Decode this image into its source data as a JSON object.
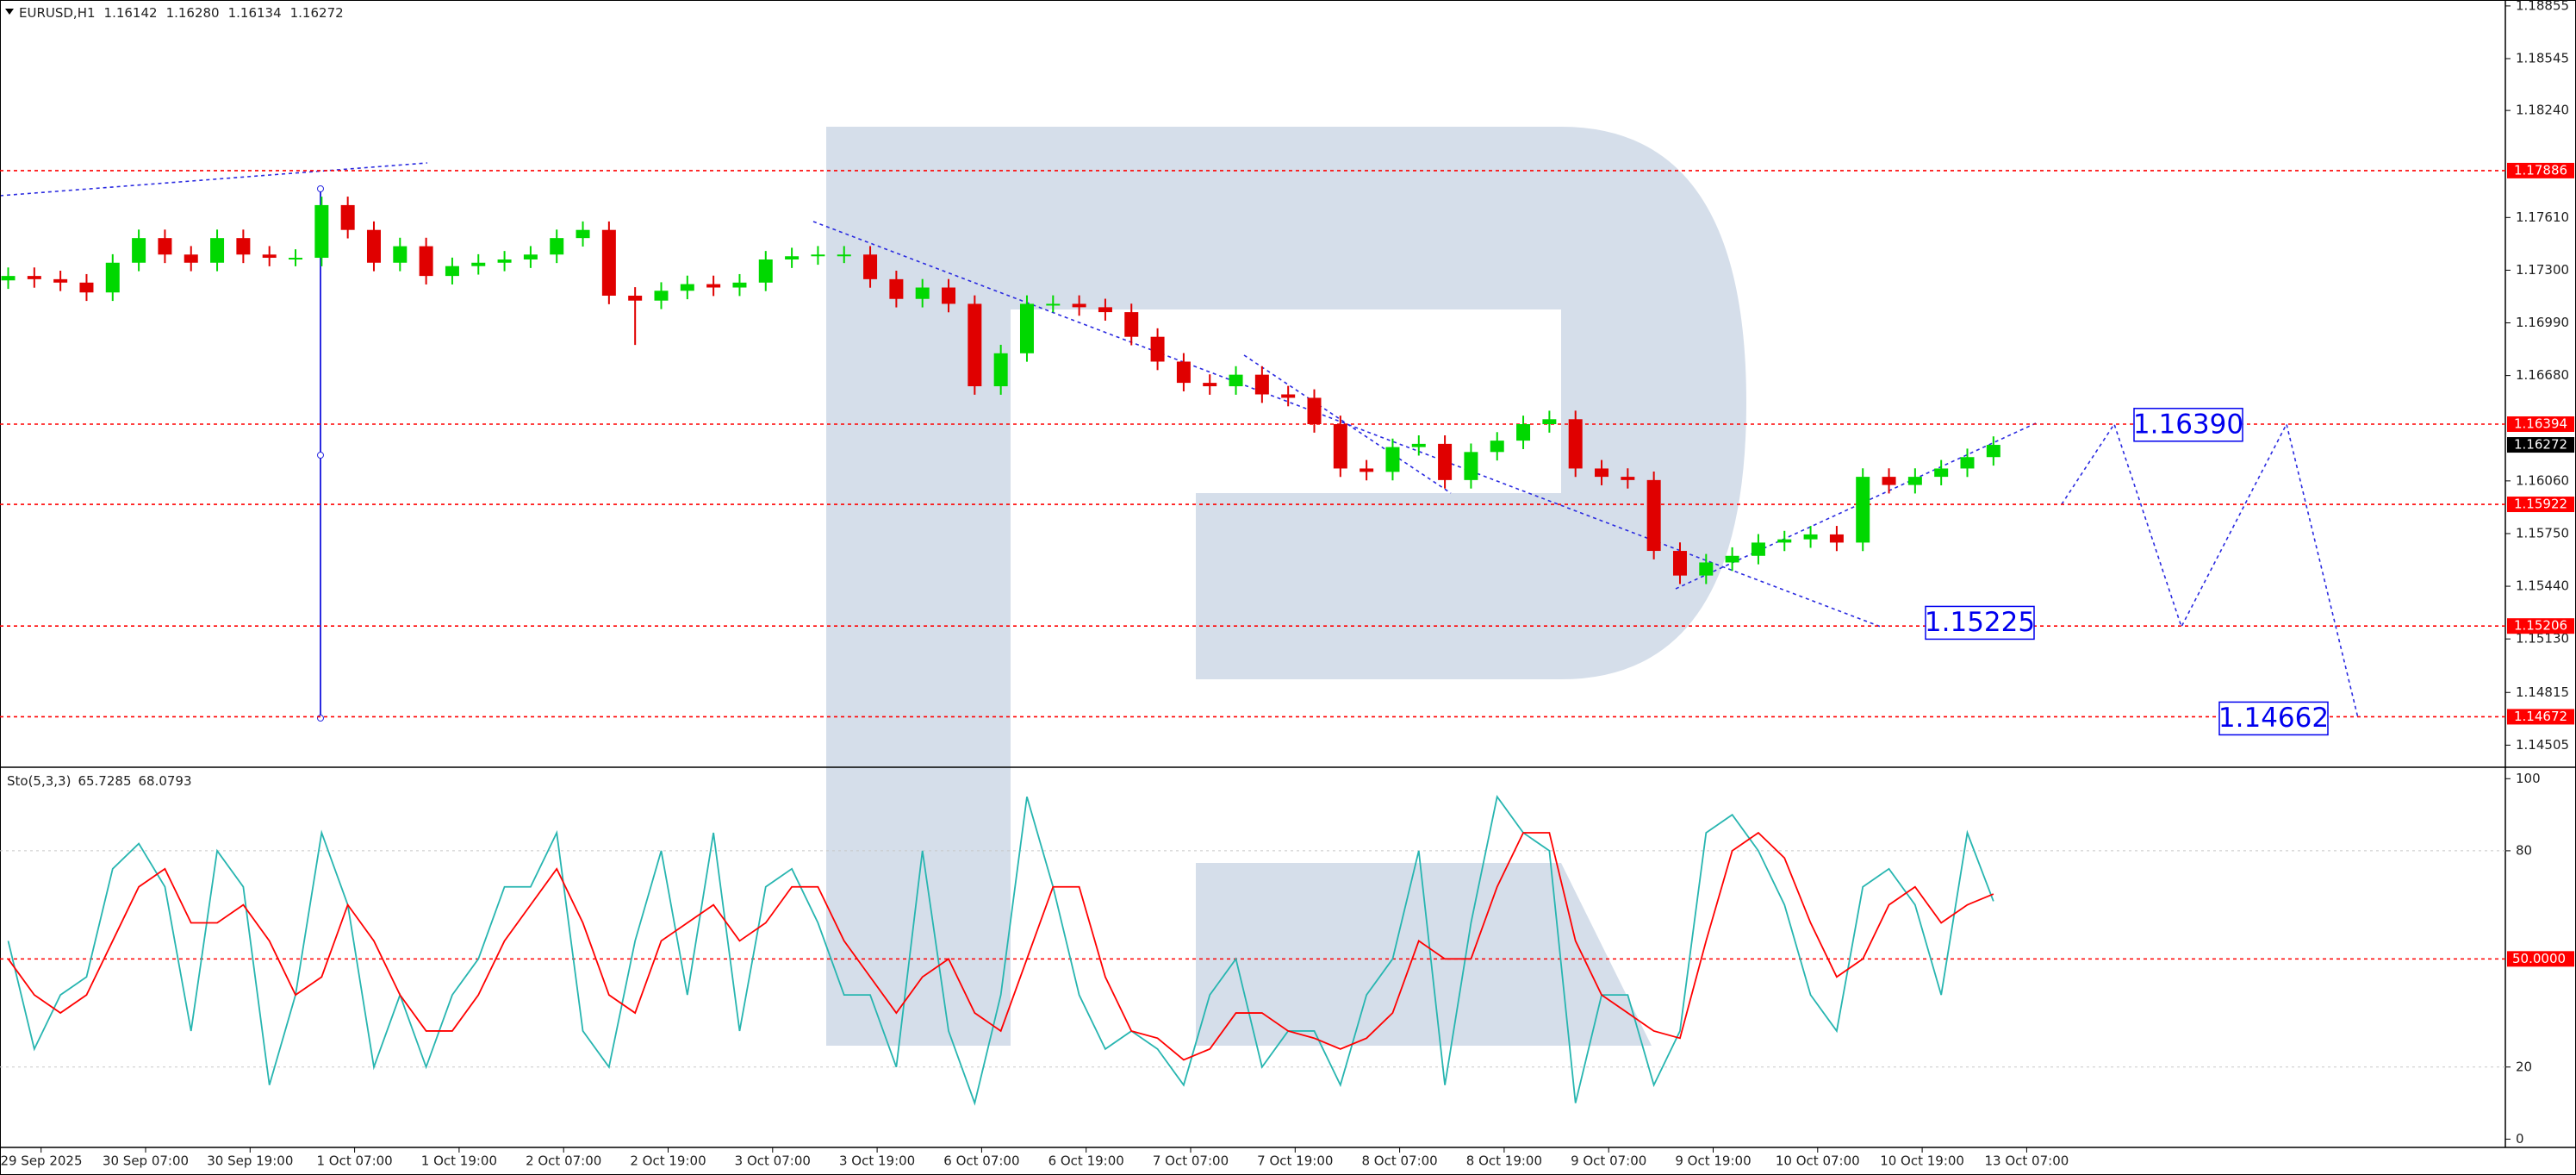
{
  "chart_data": [
    {
      "type": "candlestick",
      "title": "EURUSD,H1",
      "quote": [
        1.16142,
        {
          "value": 1.1628,
          "label": "1.16280"
        },
        1.16134,
        1.16272
      ],
      "xtick_labels": [
        "29 Sep 2025",
        "30 Sep 07:00",
        "30 Sep 19:00",
        "1 Oct 07:00",
        "1 Oct 19:00",
        "2 Oct 07:00",
        "2 Oct 19:00",
        "3 Oct 07:00",
        "3 Oct 19:00",
        "6 Oct 07:00",
        "6 Oct 19:00",
        "7 Oct 07:00",
        "7 Oct 19:00",
        "8 Oct 07:00",
        "8 Oct 19:00",
        "9 Oct 07:00",
        "9 Oct 19:00",
        "10 Oct 07:00",
        "10 Oct 19:00",
        "13 Oct 07:00"
      ],
      "open": [
        1.1724,
        1.17266,
        1.17247,
        1.17227,
        1.17169,
        1.17344,
        1.17489,
        1.17392,
        1.17344,
        1.17489,
        1.17392,
        1.17373,
        1.17373,
        1.17683,
        1.17537,
        1.17344,
        1.17441,
        1.17266,
        1.17324,
        1.17344,
        1.17363,
        1.17392,
        1.17489,
        1.17537,
        1.1715,
        1.17121,
        1.17179,
        1.17218,
        1.17198,
        1.17227,
        1.17363,
        1.17382,
        1.17392,
        1.17392,
        1.17247,
        1.17131,
        1.17198,
        1.17102,
        1.16617,
        1.16811,
        1.17102,
        1.17102,
        1.17082,
        1.17053,
        1.16908,
        1.16762,
        1.16637,
        1.16617,
        1.16685,
        1.16569,
        1.16549,
        1.16394,
        1.16133,
        1.16113,
        1.16259,
        1.16278,
        1.16065,
        1.1623,
        1.16297,
        1.16394,
        1.16423,
        1.16133,
        1.16084,
        1.16065,
        1.15648,
        1.15503,
        1.1558,
        1.15619,
        1.15697,
        1.15716,
        1.15745,
        1.15697,
        1.16084,
        1.16036,
        1.16084,
        1.16133,
        1.162
      ],
      "high": [
        1.17316,
        1.17316,
        1.17297,
        1.17277,
        1.17394,
        1.17539,
        1.17539,
        1.17442,
        1.17539,
        1.17539,
        1.17442,
        1.17423,
        1.17733,
        1.17733,
        1.17587,
        1.17491,
        1.17491,
        1.17374,
        1.17394,
        1.17413,
        1.17442,
        1.17539,
        1.17587,
        1.17587,
        1.172,
        1.17229,
        1.17268,
        1.17268,
        1.17277,
        1.17413,
        1.17432,
        1.17442,
        1.17442,
        1.17442,
        1.17297,
        1.17248,
        1.17248,
        1.17152,
        1.16861,
        1.17152,
        1.17152,
        1.17152,
        1.17132,
        1.17103,
        1.16958,
        1.16812,
        1.16687,
        1.16735,
        1.16735,
        1.16619,
        1.16599,
        1.16444,
        1.16183,
        1.16309,
        1.16328,
        1.16328,
        1.1628,
        1.16347,
        1.16444,
        1.16473,
        1.16473,
        1.16183,
        1.16134,
        1.16115,
        1.15698,
        1.1563,
        1.15669,
        1.15747,
        1.15766,
        1.15795,
        1.15795,
        1.16134,
        1.16134,
        1.16134,
        1.16183,
        1.1625,
        1.16322
      ],
      "low": [
        1.1719,
        1.17197,
        1.17177,
        1.17119,
        1.17119,
        1.17294,
        1.17342,
        1.17294,
        1.17294,
        1.17342,
        1.17323,
        1.17323,
        1.17323,
        1.17487,
        1.17294,
        1.17294,
        1.17216,
        1.17216,
        1.17274,
        1.17294,
        1.17313,
        1.17342,
        1.17439,
        1.171,
        1.1686,
        1.17071,
        1.17129,
        1.17148,
        1.17148,
        1.17177,
        1.17313,
        1.17332,
        1.17342,
        1.17197,
        1.17081,
        1.17081,
        1.17052,
        1.16567,
        1.16567,
        1.16761,
        1.17052,
        1.17032,
        1.17003,
        1.16858,
        1.16712,
        1.16587,
        1.16567,
        1.16567,
        1.16519,
        1.16499,
        1.16344,
        1.16083,
        1.16063,
        1.16063,
        1.16209,
        1.16015,
        1.16015,
        1.1618,
        1.16247,
        1.16344,
        1.16083,
        1.16034,
        1.16015,
        1.15598,
        1.15453,
        1.15453,
        1.1553,
        1.15569,
        1.15647,
        1.15666,
        1.15647,
        1.15647,
        1.15986,
        1.15986,
        1.16034,
        1.16083,
        1.1615
      ],
      "close": [
        1.17266,
        1.17247,
        1.17227,
        1.17169,
        1.17344,
        1.17489,
        1.17392,
        1.17344,
        1.17489,
        1.17392,
        1.17373,
        1.17373,
        1.17683,
        1.17537,
        1.17344,
        1.17441,
        1.17266,
        1.17324,
        1.17344,
        1.17363,
        1.17392,
        1.17489,
        1.17537,
        1.1715,
        1.17121,
        1.17179,
        1.17218,
        1.17198,
        1.17227,
        1.17363,
        1.17382,
        1.17392,
        1.17392,
        1.17247,
        1.17131,
        1.17198,
        1.17102,
        1.16617,
        1.16811,
        1.17102,
        1.17102,
        1.17082,
        1.17053,
        1.16908,
        1.16762,
        1.16637,
        1.16617,
        1.16685,
        1.16569,
        1.16549,
        1.16394,
        1.16133,
        1.16113,
        1.16259,
        1.16278,
        1.16065,
        1.1623,
        1.16297,
        1.16394,
        1.16423,
        1.16133,
        1.16084,
        1.16065,
        1.15648,
        1.15503,
        1.1558,
        1.15619,
        1.15697,
        1.15716,
        1.15745,
        1.15697,
        1.16084,
        1.16036,
        1.16084,
        1.16133,
        1.162,
        1.16272
      ],
      "up_color": "#00d800",
      "down_color": "#e00000",
      "ylim": [
        1.1438,
        1.1889
      ],
      "yticks": [
        1.18855,
        1.18545,
        {
          "value": 1.1824,
          "label": "1.18240"
        },
        {
          "value": 1.1761,
          "label": "1.17610"
        },
        {
          "value": 1.173,
          "label": "1.17300"
        },
        {
          "value": 1.1699,
          "label": "1.16990"
        },
        {
          "value": 1.1668,
          "label": "1.16680"
        },
        {
          "value": 1.1606,
          "label": "1.16060"
        },
        {
          "value": 1.1575,
          "label": "1.15750"
        },
        {
          "value": 1.1544,
          "label": "1.15440"
        },
        {
          "value": 1.1513,
          "label": "1.15130"
        },
        1.14815,
        1.14505
      ],
      "levels": [
        1.17886,
        1.16394,
        1.15922,
        1.15206,
        1.14672
      ],
      "level_color": "#ff0000",
      "last_price": 1.16272,
      "annotations": [
        {
          "value": 1.1639,
          "label": "1.16390"
        },
        1.15225,
        1.14662
      ],
      "annotation_color": "#0000ee"
    },
    {
      "type": "line",
      "title": "Sto(5,3,3)",
      "header_values": [
        65.7285,
        68.0793
      ],
      "series": [
        {
          "color": "#27b5b0",
          "values": [
            55,
            25,
            40,
            45,
            75,
            82,
            70,
            30,
            80,
            70,
            15,
            40,
            85,
            65,
            20,
            40,
            20,
            40,
            50,
            70,
            70,
            85,
            30,
            20,
            55,
            80,
            40,
            85,
            30,
            70,
            75,
            60,
            40,
            40,
            20,
            80,
            30,
            10,
            40,
            95,
            70,
            40,
            25,
            30,
            25,
            15,
            40,
            50,
            20,
            30,
            30,
            15,
            40,
            50,
            80,
            15,
            60,
            95,
            85,
            80,
            10,
            40,
            40,
            15,
            30,
            85,
            90,
            80,
            65,
            40,
            30,
            70,
            75,
            65,
            40,
            85,
            66
          ]
        },
        {
          "color": "#ff0000",
          "values": [
            50,
            40,
            35,
            40,
            55,
            70,
            75,
            60,
            60,
            65,
            55,
            40,
            45,
            65,
            55,
            40,
            30,
            30,
            40,
            55,
            65,
            75,
            60,
            40,
            35,
            55,
            60,
            65,
            55,
            60,
            70,
            70,
            55,
            45,
            35,
            45,
            50,
            35,
            30,
            50,
            70,
            70,
            45,
            30,
            28,
            22,
            25,
            35,
            35,
            30,
            28,
            25,
            28,
            35,
            55,
            50,
            50,
            70,
            85,
            85,
            55,
            40,
            35,
            30,
            28,
            55,
            80,
            85,
            78,
            60,
            45,
            50,
            65,
            70,
            60,
            65,
            68
          ]
        }
      ],
      "ylim": [
        -2.3,
        102.7
      ],
      "yticks": [
        0,
        20,
        80,
        100
      ],
      "level": {
        "value": 50,
        "label": "50.0000"
      },
      "level_color": "#ff0000"
    }
  ]
}
